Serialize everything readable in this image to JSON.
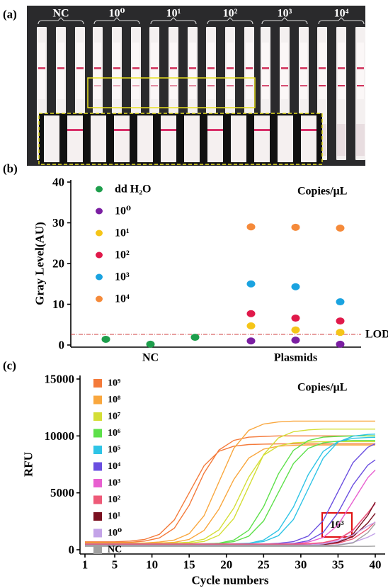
{
  "photo": {
    "panel_label": "(a)",
    "groups": [
      "NC",
      "10⁰",
      "10¹",
      "10²",
      "10³",
      "10⁴"
    ]
  },
  "chart_data": [
    {
      "type": "scatter",
      "panel_label": "(b)",
      "y_label": "Gray Level(AU)",
      "annotation": "Copies/μL",
      "categories": [
        "NC",
        "Plasmids"
      ],
      "ylim": [
        0,
        40
      ],
      "yticks": [
        0,
        10,
        20,
        30,
        40
      ],
      "lod": {
        "value": 2.6,
        "label": "LOD"
      },
      "legend": "top-left",
      "series": [
        {
          "name": "dd H₂O",
          "color": "#1e9e4c",
          "values": [
            [
              1.4,
              0.2,
              1.9
            ],
            null
          ]
        },
        {
          "name": "10⁰",
          "color": "#7b1fa2",
          "values": [
            null,
            [
              1.0,
              1.2,
              0.2
            ]
          ]
        },
        {
          "name": "10¹",
          "color": "#f5c518",
          "values": [
            null,
            [
              4.7,
              3.7,
              3.1
            ]
          ]
        },
        {
          "name": "10²",
          "color": "#e0194a",
          "values": [
            null,
            [
              7.7,
              6.6,
              5.9
            ]
          ]
        },
        {
          "name": "10³",
          "color": "#1aa3e0",
          "values": [
            null,
            [
              15.0,
              14.3,
              10.6
            ]
          ]
        },
        {
          "name": "10⁴",
          "color": "#f58a3a",
          "values": [
            null,
            [
              29.0,
              28.9,
              28.7
            ]
          ]
        }
      ]
    },
    {
      "type": "line",
      "panel_label": "(c)",
      "x_label": "Cycle numbers",
      "y_label": "RFU",
      "annotation": "Copies/μL",
      "callout": "10³",
      "xlim": [
        1,
        40
      ],
      "xticks": [
        1,
        5,
        10,
        15,
        20,
        25,
        30,
        35,
        40
      ],
      "ylim": [
        0,
        15000
      ],
      "yticks": [
        0,
        5000,
        10000,
        15000
      ],
      "legend": "top-left",
      "x": [
        1,
        3,
        5,
        7,
        9,
        11,
        13,
        15,
        17,
        19,
        21,
        23,
        25,
        27,
        29,
        31,
        33,
        35,
        37,
        39,
        40
      ],
      "series": [
        {
          "name": "10⁹",
          "color": "#f47a3a",
          "values": [
            [
              700,
              700,
              700,
              760,
              900,
              1350,
              2620,
              5000,
              7380,
              8650,
              9100,
              9240,
              9280,
              9300,
              9300,
              9300,
              9300,
              9300,
              9300,
              9300,
              9300
            ],
            [
              650,
              650,
              650,
              650,
              760,
              1040,
              1890,
              3910,
              6740,
              8760,
              9610,
              9890,
              9960,
              10000,
              10000,
              10000,
              10000,
              10000,
              10000,
              10000,
              10000
            ]
          ]
        },
        {
          "name": "10⁸",
          "color": "#f9a73e",
          "values": [
            [
              600,
              600,
              600,
              600,
              600,
              680,
              850,
              1410,
              2990,
              5950,
              8910,
              10490,
              11050,
              11230,
              11300,
              11300,
              11300,
              11300,
              11300,
              11300,
              11300
            ],
            [
              550,
              550,
              550,
              550,
              550,
              590,
              650,
              910,
              1700,
              3570,
              6180,
              8050,
              8840,
              9100,
              9170,
              9200,
              9200,
              9200,
              9200,
              9200,
              9200
            ]
          ]
        },
        {
          "name": "10⁷",
          "color": "#d4de36",
          "values": [
            [
              500,
              500,
              500,
              500,
              500,
              500,
              500,
              570,
              730,
              1270,
              2750,
              5550,
              8350,
              9830,
              10370,
              10530,
              10600,
              10600,
              10600,
              10600,
              10600
            ],
            [
              550,
              550,
              550,
              550,
              550,
              550,
              590,
              660,
              930,
              1740,
              3670,
              6380,
              8310,
              9120,
              9390,
              9460,
              9500,
              9500,
              9500,
              9500,
              9500
            ]
          ]
        },
        {
          "name": "10⁶",
          "color": "#5de04a",
          "values": [
            [
              500,
              500,
              500,
              500,
              500,
              500,
              500,
              500,
              520,
              560,
              710,
              1190,
              2530,
              5050,
              7570,
              8910,
              9390,
              9540,
              9600,
              9600,
              9600
            ],
            [
              450,
              450,
              450,
              450,
              450,
              450,
              450,
              460,
              490,
              570,
              850,
              1720,
              3780,
              6670,
              8730,
              9600,
              9890,
              9960,
              10000,
              10000,
              10000
            ]
          ]
        },
        {
          "name": "10⁵",
          "color": "#2ec4e6",
          "values": [
            [
              500,
              500,
              500,
              500,
              500,
              500,
              500,
              500,
              500,
              500,
              520,
              570,
              720,
              1240,
              2660,
              5350,
              8040,
              9460,
              9980,
              10130,
              10160
            ],
            [
              450,
              450,
              450,
              450,
              450,
              450,
              450,
              450,
              450,
              450,
              490,
              560,
              850,
              1710,
              3750,
              6600,
              8640,
              9500,
              9790,
              9860,
              9880
            ]
          ]
        },
        {
          "name": "10⁴",
          "color": "#6a4ee0",
          "values": [
            [
              500,
              500,
              500,
              500,
              500,
              500,
              500,
              500,
              500,
              500,
              500,
              500,
              500,
              560,
              710,
              1200,
              2550,
              5100,
              7650,
              9000,
              9310
            ],
            [
              450,
              450,
              450,
              450,
              450,
              450,
              450,
              450,
              450,
              450,
              450,
              450,
              450,
              480,
              550,
              790,
              1520,
              3260,
              5690,
              7430,
              7890
            ]
          ]
        },
        {
          "name": "10³",
          "color": "#e85fd0",
          "values": [
            [
              500,
              500,
              500,
              500,
              500,
              500,
              500,
              500,
              500,
              500,
              500,
              500,
              500,
              500,
              500,
              670,
              1070,
              2170,
              4250,
              6330,
              7000
            ],
            [
              450,
              450,
              450,
              450,
              450,
              450,
              450,
              450,
              450,
              450,
              450,
              450,
              450,
              450,
              450,
              490,
              580,
              870,
              1690,
              3230,
              4060
            ]
          ]
        },
        {
          "name": "10²",
          "color": "#ee5a78",
          "values": [
            [
              500,
              500,
              500,
              500,
              500,
              500,
              500,
              500,
              500,
              500,
              500,
              500,
              500,
              500,
              500,
              540,
              630,
              920,
              1730,
              3250,
              4080
            ],
            [
              400,
              400,
              400,
              400,
              400,
              400,
              400,
              400,
              400,
              400,
              400,
              400,
              400,
              400,
              400,
              400,
              450,
              570,
              950,
              1830,
              2450
            ]
          ]
        },
        {
          "name": "10¹",
          "color": "#7a1020",
          "values": [
            [
              400,
              400,
              400,
              400,
              400,
              400,
              400,
              400,
              400,
              400,
              400,
              400,
              400,
              400,
              400,
              400,
              470,
              640,
              1150,
              2350,
              3200
            ],
            [
              350,
              350,
              350,
              350,
              350,
              350,
              350,
              350,
              350,
              350,
              350,
              350,
              350,
              350,
              350,
              350,
              440,
              670,
              1370,
              3020,
              4180
            ]
          ]
        },
        {
          "name": "10⁰",
          "color": "#c3a3e8",
          "values": [
            [
              400,
              400,
              400,
              400,
              400,
              400,
              400,
              400,
              400,
              400,
              400,
              400,
              400,
              400,
              400,
              400,
              510,
              750,
              1310,
              2090,
              2420
            ],
            [
              350,
              350,
              350,
              350,
              350,
              350,
              350,
              350,
              350,
              350,
              350,
              350,
              350,
              350,
              350,
              350,
              350,
              440,
              640,
              1100,
              1430
            ]
          ]
        },
        {
          "name": "NC",
          "color": "#a0a0a0",
          "values": [
            [
              300,
              300,
              300,
              300,
              300,
              300,
              300,
              300,
              300,
              300,
              300,
              300,
              300,
              300,
              300,
              300,
              300,
              300,
              300,
              300,
              320
            ],
            [
              400,
              400,
              400,
              400,
              400,
              400,
              400,
              400,
              400,
              400,
              400,
              400,
              400,
              400,
              400,
              400,
              400,
              400,
              600,
              1500,
              2300
            ]
          ]
        }
      ]
    }
  ]
}
